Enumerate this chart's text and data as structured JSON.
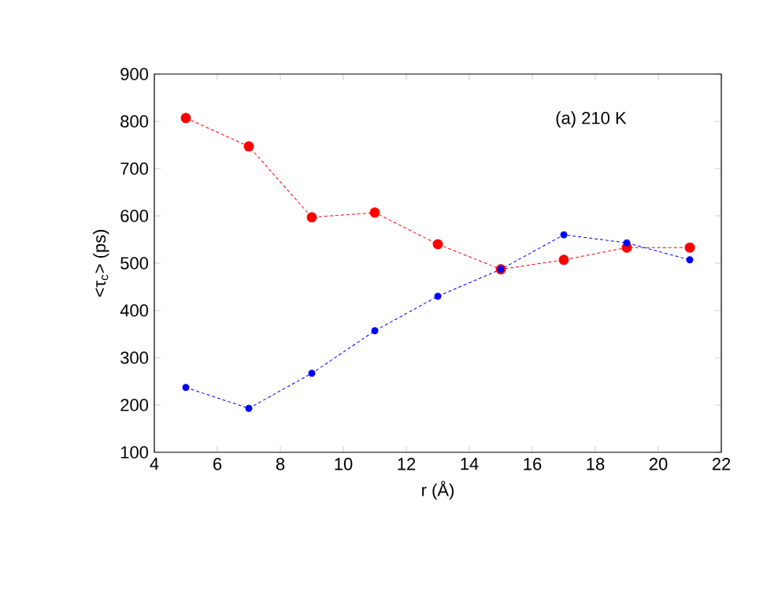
{
  "chart_data": {
    "type": "line",
    "xlabel": "r  (Å)",
    "ylabel": "<τ$_{c}$> (ps)",
    "annotations": [
      "(a)   210 K"
    ],
    "x": [
      5,
      7,
      9,
      11,
      13,
      15,
      17,
      19,
      21
    ],
    "series": [
      {
        "color": "#ff0000",
        "values": [
          807,
          747,
          597,
          607,
          540,
          487,
          507,
          533,
          533
        ]
      },
      {
        "color": "#0000ff",
        "values": [
          237,
          193,
          267,
          357,
          430,
          487,
          560,
          543,
          507
        ]
      }
    ],
    "xlim": [
      4,
      22
    ],
    "ylim": [
      100,
      900
    ],
    "xticks": [
      4,
      6,
      8,
      10,
      12,
      14,
      16,
      18,
      20,
      22
    ],
    "yticks": [
      100,
      200,
      300,
      400,
      500,
      600,
      700,
      800,
      900
    ],
    "marker": "circle",
    "line_style": "dashed",
    "grid": false
  }
}
